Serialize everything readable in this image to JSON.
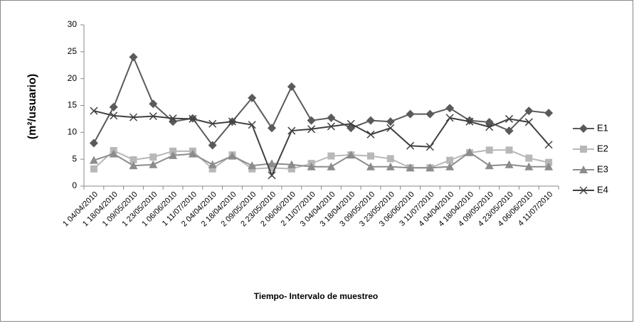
{
  "chart_data": {
    "type": "line",
    "ylabel": "(m²/usuario)",
    "xlabel": "Tiempo- Intervalo de muestreo",
    "categories": [
      "1 04/04/2010",
      "1 18/04/2010",
      "1 09/05/2010",
      "1 23/05/2010",
      "1 06/06/2010",
      "1 11/07/2010",
      "2 04/04/2010",
      "2 18/04/2010",
      "2 09/05/2010",
      "2 23/05/2010",
      "2 06/06/2010",
      "2 11/07/2010",
      "3 04/04/2010",
      "3 18/04/2010",
      "3 09/05/2010",
      "3 23/05/2010",
      "3 06/06/2010",
      "3 11/07/2010",
      "4 04/04/2010",
      "4 18/04/2010",
      "4 09/05/2010",
      "4 23/05/2010",
      "4 06/06/2010",
      "4 11/07/2010"
    ],
    "series": [
      {
        "name": "E1",
        "color": "#5a5a5a",
        "marker": "diamond",
        "values": [
          8,
          14.7,
          24,
          15.3,
          12,
          12.6,
          7.6,
          12,
          16.4,
          10.8,
          18.5,
          12.2,
          12.7,
          10.8,
          12.2,
          12,
          13.4,
          13.4,
          14.5,
          12.2,
          11.9,
          10.3,
          14,
          13.6
        ]
      },
      {
        "name": "E2",
        "color": "#b8b8b8",
        "marker": "square",
        "values": [
          3.2,
          6.6,
          4.9,
          5.4,
          6.5,
          6.5,
          3.2,
          5.8,
          3.2,
          3.4,
          3.2,
          4.2,
          5.6,
          5.8,
          5.6,
          5.1,
          3.4,
          3.4,
          4.8,
          6.2,
          6.7,
          6.7,
          5.2,
          4.4
        ]
      },
      {
        "name": "E3",
        "color": "#8c8c8c",
        "marker": "triangle",
        "values": [
          4.8,
          6,
          3.8,
          4,
          5.7,
          6,
          4,
          5.6,
          3.8,
          4.2,
          4,
          3.6,
          3.6,
          5.8,
          3.6,
          3.6,
          3.4,
          3.4,
          3.6,
          6.3,
          3.8,
          4,
          3.6,
          3.6
        ]
      },
      {
        "name": "E4",
        "color": "#404040",
        "marker": "x",
        "values": [
          14,
          13.1,
          12.8,
          13,
          12.6,
          12.5,
          11.6,
          12,
          11.4,
          2,
          10.3,
          10.6,
          11.1,
          11.6,
          9.6,
          10.8,
          7.5,
          7.3,
          12.7,
          12,
          11,
          12.5,
          11.9,
          7.7
        ]
      }
    ],
    "ylim": [
      0,
      30
    ],
    "yticks": [
      0,
      5,
      10,
      15,
      20,
      25,
      30
    ],
    "grid": false,
    "legend": "right"
  }
}
